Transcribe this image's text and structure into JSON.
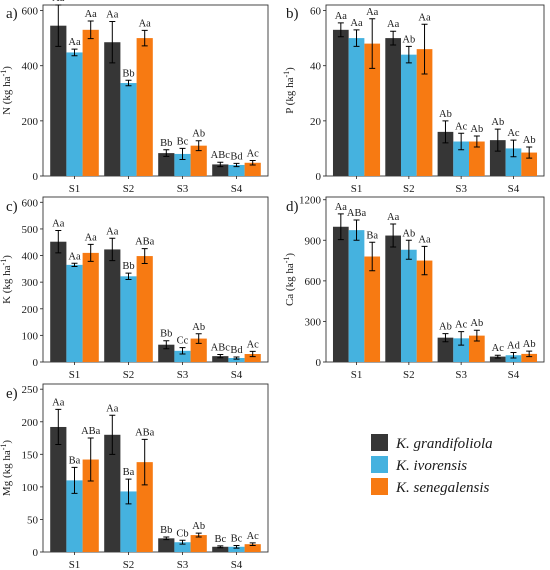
{
  "colors": {
    "K_grandifoliola": "#363636",
    "K_ivorensis": "#45b2df",
    "K_senegalensis": "#f77a12"
  },
  "legend": {
    "items": [
      {
        "label": "K. grandifoliola",
        "series": "K_grandifoliola"
      },
      {
        "label": "K. ivorensis",
        "series": "K_ivorensis"
      },
      {
        "label": "K. senegalensis",
        "series": "K_senegalensis"
      }
    ]
  },
  "chart_data": [
    {
      "panel": "a)",
      "type": "bar",
      "ylabel_base": "N (kg ha",
      "ylabel_sup": "-1",
      "ylabel_tail": ")",
      "categories": [
        "S1",
        "S2",
        "S3",
        "S4"
      ],
      "ylim": [
        0,
        620
      ],
      "yticks": [
        0,
        200,
        400,
        600
      ],
      "series": [
        {
          "key": "K_grandifoliola",
          "values": [
            545,
            485,
            83,
            42
          ],
          "errors": [
            75,
            75,
            12,
            8
          ],
          "letters": [
            "Aa",
            "Aa",
            "Bb",
            "ABc"
          ]
        },
        {
          "key": "K_ivorensis",
          "values": [
            448,
            337,
            80,
            40
          ],
          "errors": [
            12,
            10,
            20,
            6
          ],
          "letters": [
            "Aa",
            "Bb",
            "Bc",
            "Bd"
          ]
        },
        {
          "key": "K_senegalensis",
          "values": [
            530,
            500,
            110,
            48
          ],
          "errors": [
            32,
            28,
            18,
            8
          ],
          "letters": [
            "Aa",
            "Aa",
            "Ab",
            "Ac"
          ]
        }
      ]
    },
    {
      "panel": "b)",
      "type": "bar",
      "ylabel_base": "P (kg ha",
      "ylabel_sup": "-1",
      "ylabel_tail": ")",
      "categories": [
        "S1",
        "S2",
        "S3",
        "S4"
      ],
      "ylim": [
        0,
        62
      ],
      "yticks": [
        0,
        20,
        40,
        60
      ],
      "series": [
        {
          "key": "K_grandifoliola",
          "values": [
            53,
            50,
            16,
            13
          ],
          "errors": [
            2.5,
            2.5,
            4,
            4
          ],
          "letters": [
            "Aa",
            "Aa",
            "Ab",
            "Ab"
          ]
        },
        {
          "key": "K_ivorensis",
          "values": [
            50,
            44,
            12.5,
            10
          ],
          "errors": [
            3,
            3,
            3,
            3
          ],
          "letters": [
            "Aa",
            "Ab",
            "Ac",
            "Ac"
          ]
        },
        {
          "key": "K_senegalensis",
          "values": [
            48,
            46,
            12.5,
            8.5
          ],
          "errors": [
            9,
            9,
            2,
            2
          ],
          "letters": [
            "Aa",
            "Aa",
            "Ab",
            "Ab"
          ]
        }
      ]
    },
    {
      "panel": "c)",
      "type": "bar",
      "ylabel_base": "K (kg ha",
      "ylabel_sup": "-1",
      "ylabel_tail": ")",
      "categories": [
        "S1",
        "S2",
        "S3",
        "S4"
      ],
      "ylim": [
        0,
        620
      ],
      "yticks": [
        0,
        100,
        200,
        300,
        400,
        500,
        600
      ],
      "series": [
        {
          "key": "K_grandifoliola",
          "values": [
            452,
            423,
            65,
            22
          ],
          "errors": [
            42,
            42,
            15,
            6
          ],
          "letters": [
            "Aa",
            "Aa",
            "Bb",
            "ABc"
          ]
        },
        {
          "key": "K_ivorensis",
          "values": [
            365,
            322,
            42,
            15
          ],
          "errors": [
            6,
            12,
            12,
            4
          ],
          "letters": [
            "Aa",
            "Bb",
            "Cc",
            "Bd"
          ]
        },
        {
          "key": "K_senegalensis",
          "values": [
            410,
            398,
            88,
            30
          ],
          "errors": [
            32,
            28,
            18,
            10
          ],
          "letters": [
            "Aa",
            "ABa",
            "Ab",
            "Ac"
          ]
        }
      ]
    },
    {
      "panel": "d)",
      "type": "bar",
      "ylabel_base": "Ca (kg ha",
      "ylabel_sup": "-1",
      "ylabel_tail": ")",
      "categories": [
        "S1",
        "S2",
        "S3",
        "S4"
      ],
      "ylim": [
        0,
        1220
      ],
      "yticks": [
        0,
        300,
        600,
        900,
        1200
      ],
      "series": [
        {
          "key": "K_grandifoliola",
          "values": [
            1000,
            935,
            180,
            40
          ],
          "errors": [
            95,
            85,
            30,
            10
          ],
          "letters": [
            "Aa",
            "Aa",
            "Ab",
            "Ac"
          ]
        },
        {
          "key": "K_ivorensis",
          "values": [
            975,
            830,
            175,
            50
          ],
          "errors": [
            75,
            70,
            50,
            20
          ],
          "letters": [
            "ABa",
            "Ab",
            "Ac",
            "Ad"
          ]
        },
        {
          "key": "K_senegalensis",
          "values": [
            780,
            750,
            195,
            60
          ],
          "errors": [
            105,
            105,
            40,
            20
          ],
          "letters": [
            "Ba",
            "Aa",
            "Ab",
            "Ab"
          ]
        }
      ]
    },
    {
      "panel": "e)",
      "type": "bar",
      "ylabel_base": "Mg (kg ha",
      "ylabel_sup": "-1",
      "ylabel_tail": ")",
      "categories": [
        "S1",
        "S2",
        "S3",
        "S4"
      ],
      "ylim": [
        0,
        258
      ],
      "yticks": [
        0,
        50,
        100,
        150,
        200,
        250
      ],
      "series": [
        {
          "key": "K_grandifoliola",
          "values": [
            192,
            180,
            21,
            8
          ],
          "errors": [
            27,
            30,
            2,
            1.5
          ],
          "letters": [
            "Aa",
            "Aa",
            "Bb",
            "Bc"
          ]
        },
        {
          "key": "K_ivorensis",
          "values": [
            110,
            93,
            15,
            8
          ],
          "errors": [
            20,
            19,
            3,
            2
          ],
          "letters": [
            "Ba",
            "Ba",
            "Cb",
            "Bc"
          ]
        },
        {
          "key": "K_senegalensis",
          "values": [
            142,
            138,
            26,
            12
          ],
          "errors": [
            33,
            35,
            3,
            2
          ],
          "letters": [
            "ABa",
            "ABa",
            "Ab",
            "Ac"
          ]
        }
      ]
    }
  ]
}
